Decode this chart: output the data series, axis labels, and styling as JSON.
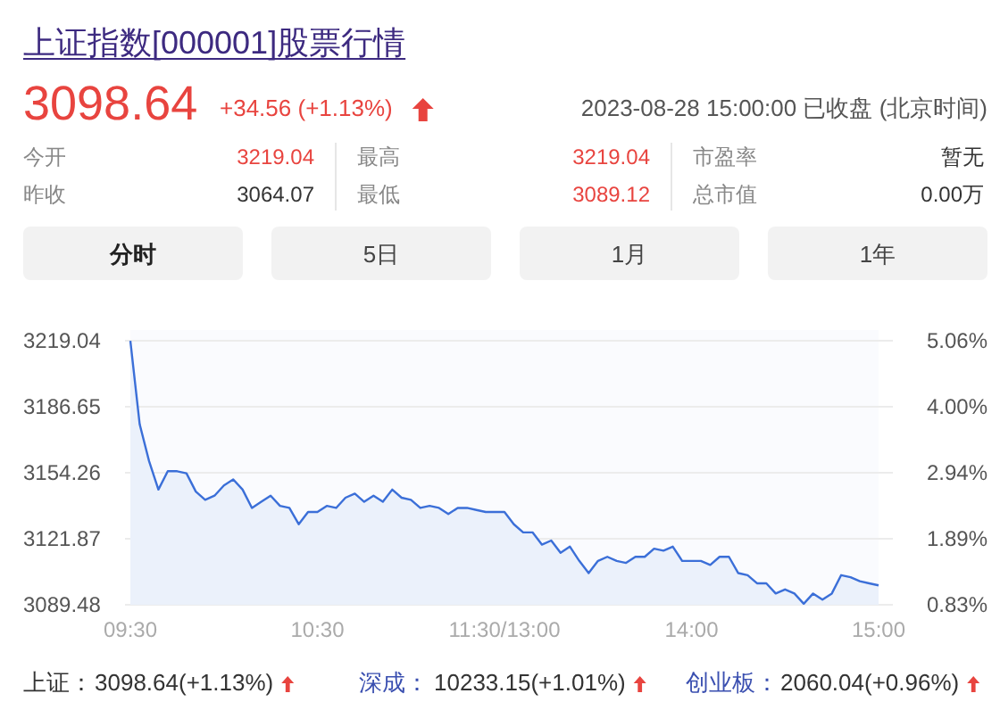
{
  "chart_data": {
    "type": "area",
    "title": "上证指数[000001]股票行情",
    "annotations": [
      "3098.64",
      "+34.56 (+1.13%)",
      "2023-08-28 15:00:00 已收盘 (北京时间)",
      "今开",
      "3219.04",
      "最高",
      "3219.04",
      "市盈率",
      "暂无",
      "昨收",
      "3064.07",
      "最低",
      "3089.12",
      "总市值",
      "0.00万",
      "分时",
      "5日",
      "1月",
      "1年",
      "上证：",
      "3098.64(+1.13%)",
      "深成：",
      "10233.15(+1.01%)",
      "创业板：",
      "2060.04(+0.96%)"
    ],
    "categories": [
      "09:30",
      null,
      null,
      null,
      null,
      null,
      null,
      null,
      null,
      null,
      null,
      null,
      null,
      null,
      null,
      null,
      null,
      null,
      null,
      null,
      "10:30",
      null,
      null,
      null,
      null,
      null,
      null,
      null,
      null,
      null,
      null,
      null,
      null,
      null,
      null,
      null,
      null,
      null,
      null,
      null,
      "11:30/13:00",
      null,
      null,
      null,
      null,
      null,
      null,
      null,
      null,
      null,
      null,
      null,
      null,
      null,
      null,
      null,
      null,
      null,
      null,
      null,
      "14:00",
      null,
      null,
      null,
      null,
      null,
      null,
      null,
      null,
      null,
      null,
      null,
      null,
      null,
      null,
      null,
      null,
      null,
      null,
      null,
      "15:00"
    ],
    "values": [
      3219,
      3178,
      3160,
      3146,
      3155,
      3155,
      3154,
      3145,
      3141,
      3143,
      3148,
      3151,
      3146,
      3137,
      3140,
      3143,
      3138,
      3137,
      3129,
      3135,
      3135,
      3138,
      3137,
      3142,
      3144,
      3140,
      3143,
      3140,
      3146,
      3142,
      3141,
      3137,
      3138,
      3137,
      3134,
      3137,
      3137,
      3136,
      3135,
      3135,
      3135,
      3129,
      3125,
      3125,
      3119,
      3121,
      3115,
      3118,
      3111,
      3105,
      3111,
      3113,
      3111,
      3110,
      3113,
      3113,
      3117,
      3116,
      3118,
      3111,
      3111,
      3111,
      3109,
      3113,
      3113,
      3105,
      3104,
      3100,
      3100,
      3095,
      3097,
      3095,
      3090,
      3095,
      3092,
      3095,
      3104,
      3103,
      3101,
      3100,
      3099
    ],
    "color": "#3b6fd8",
    "ylim": [
      3089.48,
      3219.04
    ],
    "yticks": [
      3089.48,
      3121.87,
      3154.26,
      3186.65,
      3219.04
    ],
    "y2lim": [
      0.83,
      5.06
    ],
    "y2ticks": [
      {
        "value": 0.83,
        "label": "0.83%"
      },
      {
        "value": 1.89,
        "label": "1.89%"
      },
      {
        "value": 2.94,
        "label": "2.94%"
      },
      {
        "value": 4.0,
        "label": "4.00%"
      },
      {
        "value": 5.06,
        "label": "5.06%"
      }
    ],
    "grid": "y"
  }
}
